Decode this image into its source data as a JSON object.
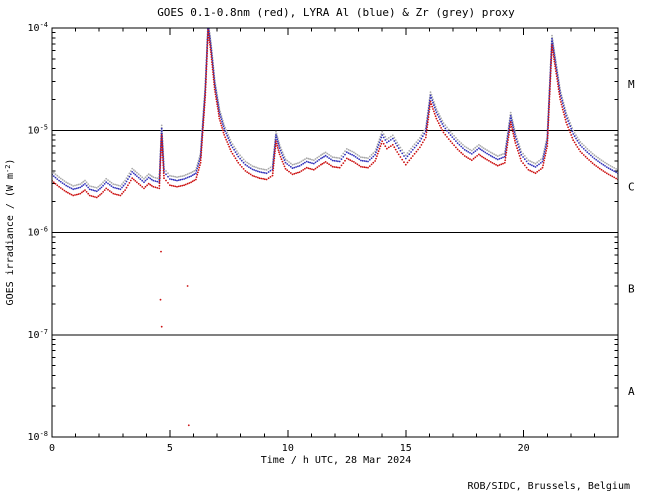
{
  "title": "GOES 0.1-0.8nm (red), LYRA Al (blue) & Zr (grey) proxy",
  "footer": "ROB/SIDC, Brussels, Belgium",
  "colors": {
    "background": "#ffffff",
    "axis": "#000000",
    "goes_red": "#cc1111",
    "lyra_al_blue": "#3333bb",
    "lyra_zr_grey": "#aaaaaa"
  },
  "chart_data": {
    "type": "scatter",
    "title": "GOES 0.1-0.8nm (red), LYRA Al (blue) & Zr (grey) proxy",
    "xlabel": "Time / h UTC, 28 Mar 2024",
    "ylabel": {
      "pre": "GOES irradiance / (W m",
      "exp": "-2",
      "post": ")"
    },
    "x_range": [
      0,
      24
    ],
    "x_major_ticks": [
      0,
      5,
      10,
      15,
      20
    ],
    "x_minor_step": 1,
    "y_log_range": [
      -8,
      -4
    ],
    "y_tick_exponents": [
      -4,
      -5,
      -6,
      -7,
      -8
    ],
    "grid": false,
    "hlines": [
      1e-05,
      1e-06,
      1e-07
    ],
    "flare_classes": [
      {
        "label": "M",
        "log_center": -4.55
      },
      {
        "label": "C",
        "log_center": -5.55
      },
      {
        "label": "B",
        "log_center": -6.55
      },
      {
        "label": "A",
        "log_center": -7.55
      }
    ],
    "x": [
      0.0,
      0.3,
      0.6,
      0.9,
      1.2,
      1.4,
      1.6,
      1.9,
      2.1,
      2.3,
      2.6,
      2.9,
      3.1,
      3.4,
      3.6,
      3.9,
      4.1,
      4.3,
      4.55,
      4.65,
      4.75,
      5.0,
      5.3,
      5.6,
      5.9,
      6.1,
      6.3,
      6.5,
      6.62,
      6.75,
      6.9,
      7.1,
      7.3,
      7.6,
      7.9,
      8.2,
      8.5,
      8.8,
      9.1,
      9.35,
      9.5,
      9.65,
      9.9,
      10.2,
      10.5,
      10.8,
      11.1,
      11.4,
      11.6,
      11.9,
      12.2,
      12.5,
      12.8,
      13.1,
      13.4,
      13.7,
      14.0,
      14.2,
      14.45,
      14.7,
      15.0,
      15.3,
      15.6,
      15.85,
      16.05,
      16.3,
      16.6,
      16.9,
      17.2,
      17.5,
      17.8,
      18.1,
      18.3,
      18.6,
      18.9,
      19.2,
      19.45,
      19.65,
      19.9,
      20.2,
      20.5,
      20.8,
      21.0,
      21.2,
      21.35,
      21.55,
      21.8,
      22.1,
      22.4,
      22.7,
      23.0,
      23.3,
      23.6,
      24.0
    ],
    "base_values": [
      3.2e-06,
      2.8e-06,
      2.5e-06,
      2.3e-06,
      2.4e-06,
      2.6e-06,
      2.3e-06,
      2.2e-06,
      2.4e-06,
      2.7e-06,
      2.4e-06,
      2.3e-06,
      2.6e-06,
      3.4e-06,
      3.1e-06,
      2.7e-06,
      3e-06,
      2.8e-06,
      2.7e-06,
      9e-06,
      3.4e-06,
      2.9e-06,
      2.8e-06,
      2.9e-06,
      3.1e-06,
      3.3e-06,
      4.8e-06,
      2.2e-05,
      9.5e-05,
      5.5e-05,
      2.5e-05,
      1.3e-05,
      9e-06,
      6.2e-06,
      4.8e-06,
      4e-06,
      3.6e-06,
      3.4e-06,
      3.3e-06,
      3.6e-06,
      7.8e-06,
      5.8e-06,
      4.2e-06,
      3.7e-06,
      3.9e-06,
      4.3e-06,
      4.1e-06,
      4.6e-06,
      4.9e-06,
      4.4e-06,
      4.3e-06,
      5.3e-06,
      4.9e-06,
      4.4e-06,
      4.3e-06,
      5e-06,
      7.8e-06,
      6.6e-06,
      7.2e-06,
      5.8e-06,
      4.6e-06,
      5.6e-06,
      6.8e-06,
      8.5e-06,
      1.9e-05,
      1.3e-05,
      9.5e-06,
      7.8e-06,
      6.5e-06,
      5.6e-06,
      5.1e-06,
      5.8e-06,
      5.4e-06,
      4.9e-06,
      4.5e-06,
      4.8e-06,
      1.2e-05,
      7.5e-06,
      5e-06,
      4.1e-06,
      3.8e-06,
      4.3e-06,
      7e-06,
      6.8e-05,
      4e-05,
      2e-05,
      1.2e-05,
      8e-06,
      6.2e-06,
      5.3e-06,
      4.6e-06,
      4.1e-06,
      3.7e-06,
      3.3e-06
    ],
    "series": [
      {
        "name": "GOES 0.1-0.8nm",
        "color": "#cc1111",
        "factor": 1.0
      },
      {
        "name": "LYRA Al proxy",
        "color": "#3333bb",
        "factor": 1.15
      },
      {
        "name": "LYRA Zr proxy",
        "color": "#aaaaaa",
        "factor": 1.24
      }
    ],
    "outliers": {
      "color": "#cc1111",
      "points": [
        [
          4.6,
          2.2e-07
        ],
        [
          4.65,
          1.2e-07
        ],
        [
          4.62,
          6.5e-07
        ],
        [
          5.75,
          3e-07
        ],
        [
          5.8,
          1.3e-08
        ]
      ]
    }
  }
}
